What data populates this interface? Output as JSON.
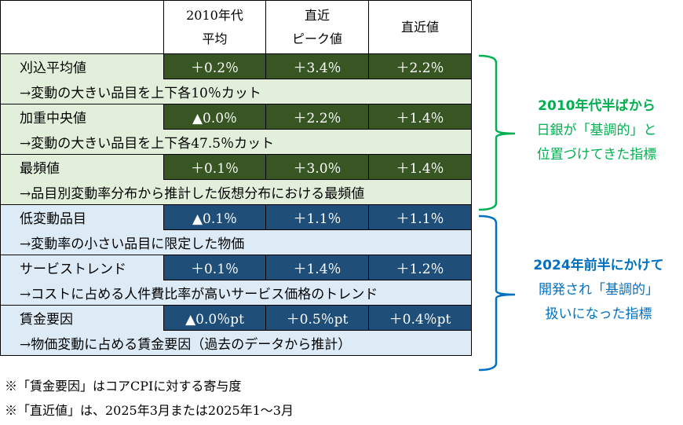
{
  "header": {
    "col1_line1": "2010年代",
    "col1_line2": "平均",
    "col2_line1": "直近",
    "col2_line2": "ピーク値",
    "col3": "直近値"
  },
  "rows": [
    {
      "label": "刈込平均値",
      "values": [
        "＋0.2％",
        "＋3.4％",
        "＋2.2％"
      ],
      "desc": "→変動の大きい品目を上下各10％カット",
      "group": "green"
    },
    {
      "label": "加重中央値",
      "values": [
        "▲0.0％",
        "＋2.2％",
        "＋1.4％"
      ],
      "desc": "→変動の大きい品目を上下各47.5％カット",
      "group": "green"
    },
    {
      "label": "最頻値",
      "values": [
        "＋0.1％",
        "＋3.0％",
        "＋1.4％"
      ],
      "desc": "→品目別変動率分布から推計した仮想分布における最頻値",
      "group": "green"
    },
    {
      "label": "低変動品目",
      "values": [
        "▲0.1％",
        "＋1.1％",
        "＋1.1％"
      ],
      "desc": "→変動率の小さい品目に限定した物価",
      "group": "blue"
    },
    {
      "label": "サービストレンド",
      "values": [
        "＋0.1％",
        "＋1.4％",
        "＋1.2％"
      ],
      "desc": "→コストに占める人件費比率が高いサービス価格のトレンド",
      "group": "blue"
    },
    {
      "label": "賃金要因",
      "values": [
        "▲0.0％pt",
        "＋0.5％pt",
        "＋0.4％pt"
      ],
      "desc": "→物価変動に占める賃金要因（過去のデータから推計）",
      "group": "blue"
    }
  ],
  "annotations": {
    "green": [
      "2010年代半ばから",
      "日銀が「基調的」と",
      "位置づけてきた指標"
    ],
    "blue": [
      "2024年前半にかけて",
      "開発され「基調的」",
      "扱いになった指標"
    ]
  },
  "notes": [
    "※「賃金要因」はコアCPIに対する寄与度",
    "※「直近値」は、2025年3月または2025年1～3月"
  ],
  "colors": {
    "green_dark": "#375623",
    "green_light": "#e2efda",
    "blue_dark": "#1f4e79",
    "blue_light": "#ddebf7",
    "green_text": "#00b050",
    "blue_text": "#0070c0"
  }
}
